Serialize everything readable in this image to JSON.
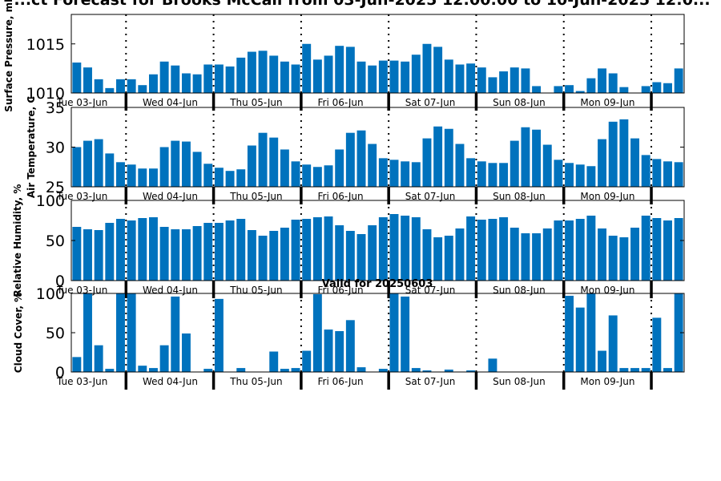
{
  "chart_data": {
    "type": "bar",
    "title": "...ct Forecast for Brooks McCall from 03-Jun-2025 12:00:00 to 10-Jun-2025 12:0...",
    "bar_color": "#0072BD",
    "day_labels": [
      "Tue 03-Jun",
      "Wed 04-Jun",
      "Thu 05-Jun",
      "Fri 06-Jun",
      "Sat 07-Jun",
      "Sun 08-Jun",
      "Mon 09-Jun"
    ],
    "panels": [
      {
        "id": "pressure",
        "ylabel": "Surface Pressure, mb",
        "ylim": [
          1010,
          1018
        ],
        "yticks": [
          1010,
          1015
        ],
        "values": [
          1013.1,
          1012.6,
          1011.4,
          1010.5,
          1011.4,
          1011.4,
          1010.8,
          1011.9,
          1013.2,
          1012.8,
          1012,
          1011.9,
          1012.9,
          1012.9,
          1012.7,
          1013.6,
          1014.2,
          1014.3,
          1013.8,
          1013.2,
          1012.9,
          1015,
          1013.4,
          1013.8,
          1014.8,
          1014.7,
          1013.2,
          1012.8,
          1013.3,
          1013.3,
          1013.2,
          1013.9,
          1015,
          1014.7,
          1013.4,
          1012.9,
          1013,
          1012.6,
          1011.6,
          1012.2,
          1012.6,
          1012.5,
          1010.7,
          1010,
          1010.7,
          1010.8,
          1010.2,
          1011.5,
          1012.5,
          1012,
          1010.6,
          1010,
          1010.7,
          1011.1,
          1011,
          1012.5
        ]
      },
      {
        "id": "temperature",
        "ylabel": "Air Temperature, C",
        "ylim": [
          25,
          35
        ],
        "yticks": [
          25,
          30,
          35
        ],
        "values": [
          30,
          30.8,
          31,
          29.2,
          28.1,
          27.8,
          27.3,
          27.3,
          30,
          30.8,
          30.7,
          29.4,
          27.9,
          27.4,
          27,
          27.2,
          30.2,
          31.8,
          31.2,
          29.7,
          28.2,
          27.8,
          27.5,
          27.7,
          29.7,
          31.8,
          32.1,
          30.4,
          28.6,
          28.4,
          28.2,
          28.1,
          31.1,
          32.6,
          32.3,
          30.4,
          28.6,
          28.2,
          28,
          28,
          30.8,
          32.5,
          32.2,
          30.3,
          28.4,
          28,
          27.8,
          27.6,
          31,
          33.2,
          33.5,
          31.1,
          29,
          28.5,
          28.2,
          28.1
        ]
      },
      {
        "id": "humidity",
        "ylabel": "Relative Humidity, %",
        "ylim": [
          0,
          100
        ],
        "yticks": [
          0,
          50,
          100
        ],
        "values": [
          67,
          64,
          63,
          72,
          77,
          75,
          78,
          79,
          67,
          64,
          64,
          68,
          72,
          72,
          75,
          77,
          63,
          56,
          62,
          66,
          76,
          77,
          79,
          80,
          69,
          62,
          58,
          69,
          79,
          83,
          81,
          79,
          64,
          54,
          56,
          65,
          80,
          76,
          77,
          79,
          66,
          59,
          59,
          65,
          75,
          75,
          77,
          81,
          65,
          56,
          54,
          66,
          81,
          78,
          75,
          78
        ]
      },
      {
        "id": "cloud",
        "ylabel": "Cloud Cover, %",
        "subtitle": "Valid for 20250603",
        "ylim": [
          0,
          100
        ],
        "yticks": [
          0,
          50,
          100
        ],
        "values": [
          19,
          100,
          34,
          4,
          100,
          100,
          8,
          5,
          34,
          96,
          49,
          0,
          4,
          93,
          0,
          5,
          0,
          0,
          26,
          4,
          5,
          27,
          99,
          54,
          52,
          66,
          6,
          0,
          4,
          100,
          96,
          5,
          2,
          0,
          3,
          0,
          2,
          0,
          17,
          0,
          0,
          0,
          0,
          0,
          0,
          97,
          82,
          100,
          27,
          72,
          5,
          5,
          5,
          69,
          5,
          100
        ]
      }
    ]
  }
}
